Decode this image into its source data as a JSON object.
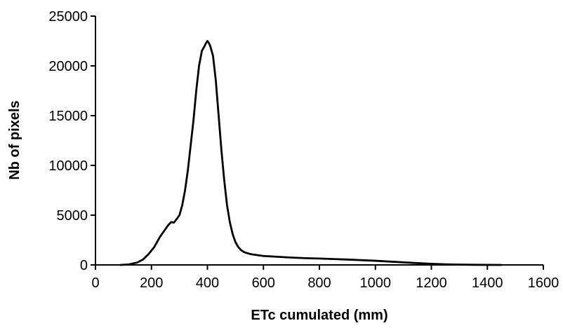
{
  "chart_data": {
    "type": "line",
    "title": "",
    "xlabel": "ETc cumulated (mm)",
    "ylabel": "Nb of pixels",
    "xlim": [
      0,
      1600
    ],
    "ylim": [
      0,
      25000
    ],
    "xticks": [
      0,
      200,
      400,
      600,
      800,
      1000,
      1200,
      1400,
      1600
    ],
    "yticks": [
      0,
      5000,
      10000,
      15000,
      20000,
      25000
    ],
    "grid": false,
    "legend": "none",
    "series": [
      {
        "color": "#000000",
        "x": [
          90,
          120,
          150,
          170,
          190,
          210,
          230,
          250,
          260,
          270,
          280,
          290,
          300,
          310,
          320,
          330,
          340,
          350,
          360,
          370,
          380,
          390,
          395,
          400,
          405,
          410,
          420,
          430,
          440,
          450,
          460,
          470,
          480,
          490,
          500,
          510,
          520,
          530,
          540,
          550,
          560,
          570,
          580,
          600,
          650,
          700,
          750,
          800,
          850,
          900,
          950,
          1000,
          1050,
          1100,
          1150,
          1200,
          1250,
          1300,
          1350,
          1400,
          1450
        ],
        "y": [
          0,
          50,
          250,
          550,
          1100,
          1800,
          2800,
          3600,
          4000,
          4300,
          4250,
          4600,
          5000,
          6000,
          7500,
          9500,
          12000,
          14500,
          17500,
          20000,
          21500,
          22000,
          22300,
          22500,
          22300,
          22000,
          21000,
          18500,
          15000,
          11500,
          8500,
          6000,
          4300,
          3100,
          2300,
          1800,
          1500,
          1300,
          1200,
          1120,
          1060,
          1020,
          980,
          900,
          820,
          740,
          680,
          640,
          590,
          540,
          480,
          420,
          340,
          260,
          180,
          110,
          60,
          30,
          15,
          5,
          0
        ]
      }
    ]
  }
}
